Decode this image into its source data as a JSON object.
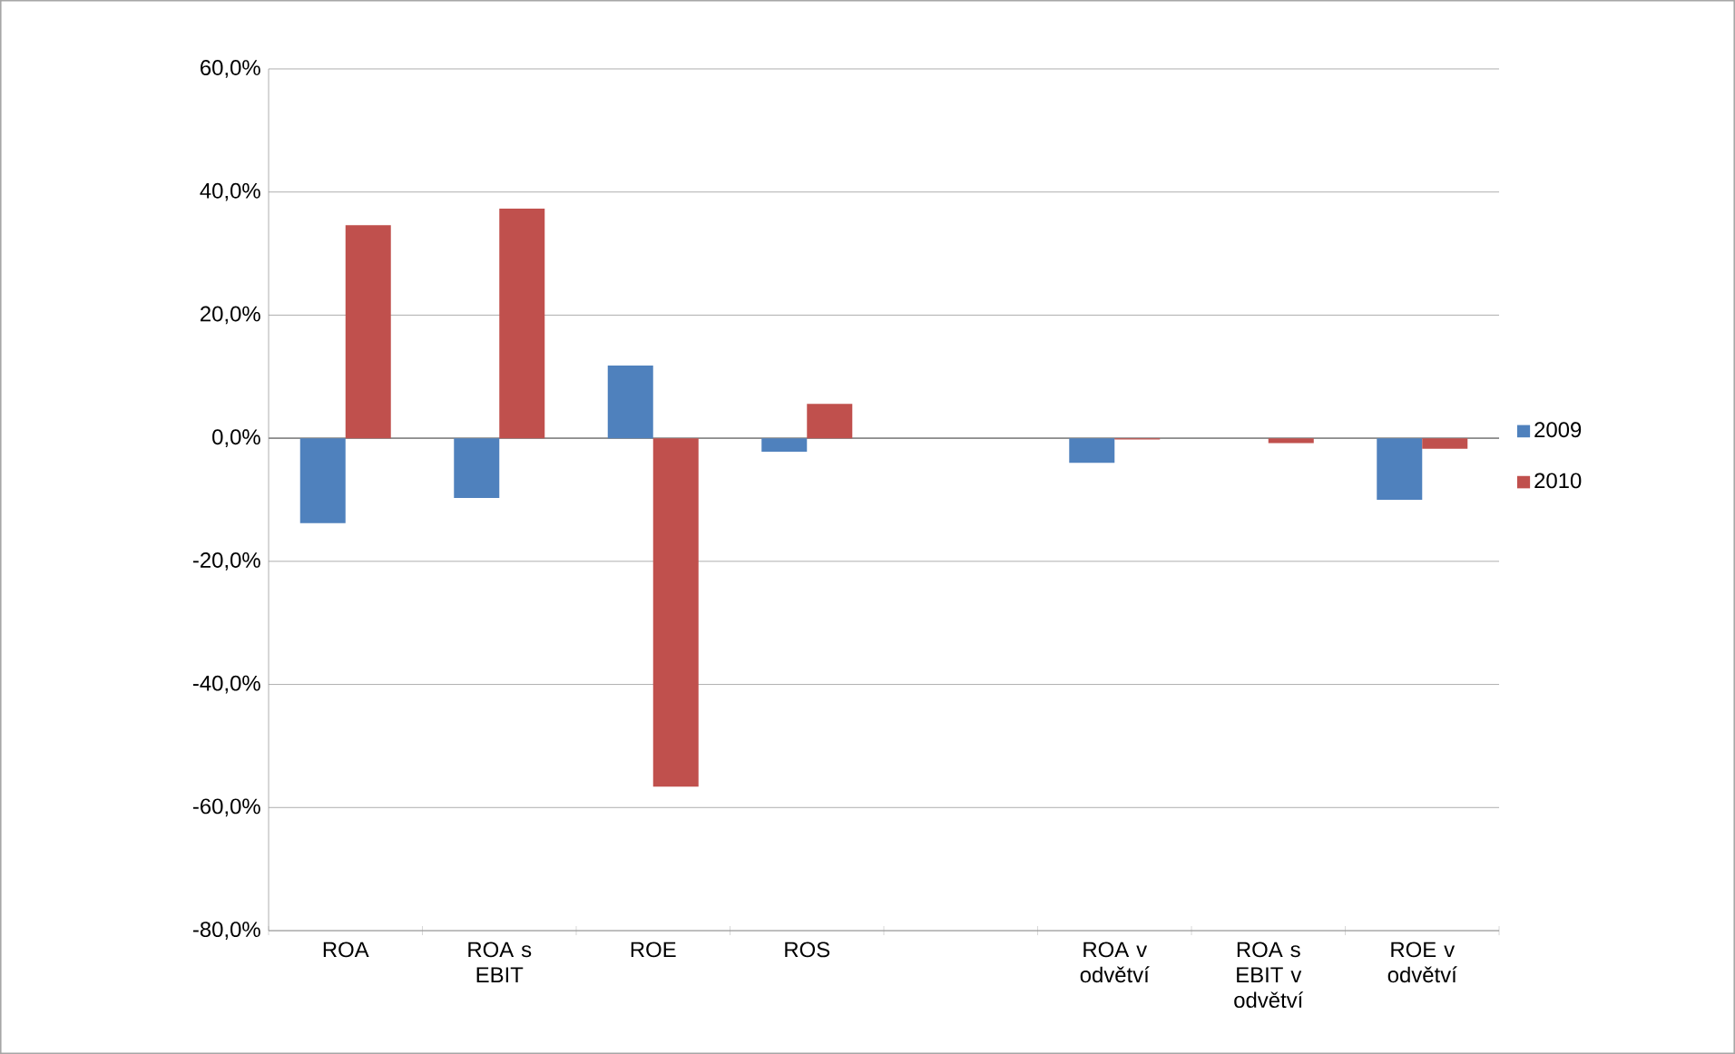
{
  "chart_data": {
    "type": "bar",
    "categories": [
      "ROA",
      "ROA s EBIT",
      "ROE",
      "ROS",
      null,
      "ROA v odvětví",
      "ROA s EBIT v odvětví",
      "ROE v odvětví"
    ],
    "series": [
      {
        "name": "2009",
        "color": "#4f81bd",
        "values": [
          -13.8,
          -9.7,
          11.8,
          -2.2,
          null,
          -4.0,
          0,
          -10.0
        ]
      },
      {
        "name": "2010",
        "color": "#c0504d",
        "values": [
          34.6,
          37.3,
          -56.6,
          5.6,
          null,
          -0.2,
          -0.8,
          -1.7
        ]
      }
    ],
    "ylim": [
      -80,
      60
    ],
    "yticks": [
      {
        "value": -80,
        "label": "-80,0%"
      },
      {
        "value": -60,
        "label": "-60,0%"
      },
      {
        "value": -40,
        "label": "-40,0%"
      },
      {
        "value": -20,
        "label": "-20,0%"
      },
      {
        "value": 0,
        "label": "0,0%"
      },
      {
        "value": 20,
        "label": "20,0%"
      },
      {
        "value": 40,
        "label": "40,0%"
      },
      {
        "value": 60,
        "label": "60,0%"
      }
    ],
    "grid": "y",
    "legend": "right"
  }
}
